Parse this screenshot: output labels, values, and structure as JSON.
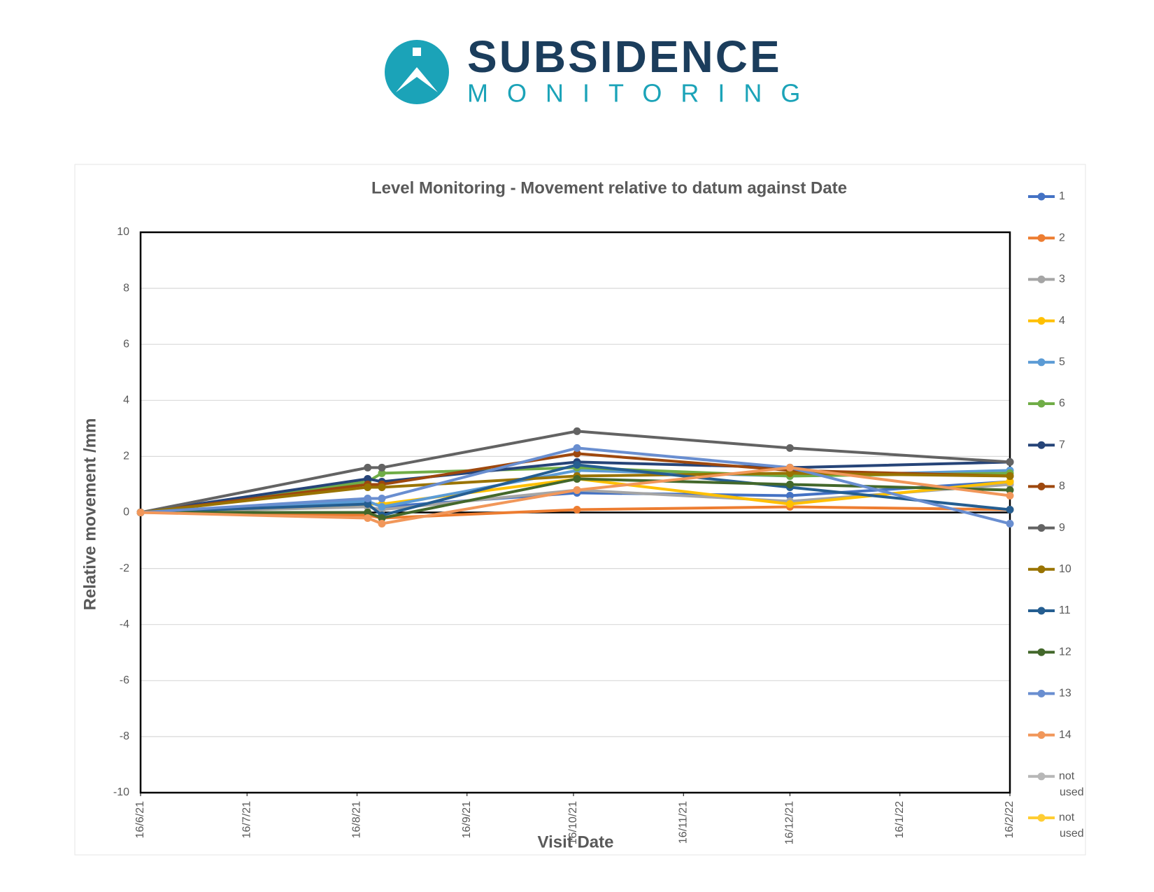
{
  "header": {
    "logo_title": "SUBSIDENCE",
    "logo_subtitle": "MONITORING"
  },
  "chart_data": {
    "type": "line",
    "title": "Level Monitoring - Movement relative to datum against Date",
    "x_label": "Visit Date",
    "y_label": "Relative movement /mm",
    "x": [
      "2021-06-16",
      "2021-08-19",
      "2021-08-23",
      "2021-10-17",
      "2021-12-16",
      "2022-02-16"
    ],
    "xlim": [
      "2021-06-16",
      "2022-02-16"
    ],
    "xticks": [
      {
        "value": "2021-06-16",
        "label": "16/6/21"
      },
      {
        "value": "2021-07-16",
        "label": "16/7/21"
      },
      {
        "value": "2021-08-16",
        "label": "16/8/21"
      },
      {
        "value": "2021-09-16",
        "label": "16/9/21"
      },
      {
        "value": "2021-10-16",
        "label": "16/10/21"
      },
      {
        "value": "2021-11-16",
        "label": "16/11/21"
      },
      {
        "value": "2021-12-16",
        "label": "16/12/21"
      },
      {
        "value": "2022-01-16",
        "label": "16/1/22"
      },
      {
        "value": "2022-02-16",
        "label": "16/2/22"
      }
    ],
    "ylim": [
      -10,
      10
    ],
    "yticks": [
      -10,
      -8,
      -6,
      -4,
      -2,
      0,
      2,
      4,
      6,
      8,
      10
    ],
    "grid": true,
    "legend": "right",
    "series": [
      {
        "name": "1",
        "color": "#4472c4",
        "values": [
          0,
          0.4,
          0.2,
          0.7,
          0.6,
          1.1
        ]
      },
      {
        "name": "2",
        "color": "#ed7d31",
        "values": [
          0,
          -0.1,
          -0.2,
          0.1,
          0.2,
          0.1
        ]
      },
      {
        "name": "3",
        "color": "#a5a5a5",
        "values": [
          0,
          0.2,
          0.1,
          0.8,
          0.4,
          1.0
        ]
      },
      {
        "name": "4",
        "color": "#ffc000",
        "values": [
          0,
          0.3,
          0.3,
          1.2,
          0.3,
          1.1
        ]
      },
      {
        "name": "5",
        "color": "#5b9bd5",
        "values": [
          0,
          0.4,
          0.2,
          1.5,
          1.3,
          1.5
        ]
      },
      {
        "name": "6",
        "color": "#70ad47",
        "values": [
          0,
          1.1,
          1.4,
          1.6,
          1.3,
          1.4
        ]
      },
      {
        "name": "7",
        "color": "#264478",
        "values": [
          0,
          1.2,
          1.1,
          1.8,
          1.6,
          1.8
        ]
      },
      {
        "name": "8",
        "color": "#9e480e",
        "values": [
          0,
          1.0,
          1.0,
          2.1,
          1.5,
          1.3
        ]
      },
      {
        "name": "9",
        "color": "#636363",
        "values": [
          0,
          1.6,
          1.6,
          2.9,
          2.3,
          1.8
        ]
      },
      {
        "name": "10",
        "color": "#997300",
        "values": [
          0,
          0.9,
          0.9,
          1.3,
          1.4,
          1.3
        ]
      },
      {
        "name": "11",
        "color": "#255e91",
        "values": [
          0,
          0.3,
          -0.1,
          1.7,
          0.9,
          0.1
        ]
      },
      {
        "name": "12",
        "color": "#43682b",
        "values": [
          0,
          0.0,
          -0.2,
          1.2,
          1.0,
          0.8
        ]
      },
      {
        "name": "13",
        "color": "#698ed0",
        "values": [
          0,
          0.5,
          0.5,
          2.3,
          1.6,
          -0.4
        ]
      },
      {
        "name": "14",
        "color": "#f1975a",
        "values": [
          0,
          -0.2,
          -0.4,
          0.8,
          1.6,
          0.6
        ]
      },
      {
        "name": "not used",
        "color": "#b7b7b7",
        "values": [
          null,
          null,
          null,
          null,
          null,
          null
        ]
      },
      {
        "name": "not used",
        "color": "#ffcd33",
        "values": [
          null,
          null,
          null,
          null,
          null,
          null
        ]
      }
    ]
  }
}
